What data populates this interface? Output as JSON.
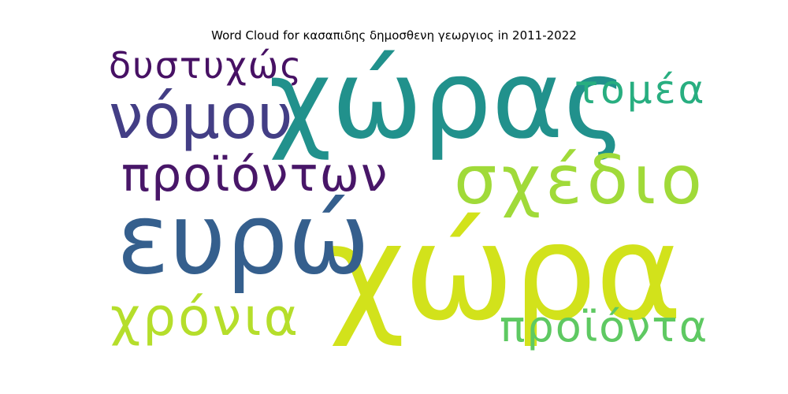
{
  "title": "Word Cloud for κασαπιδης δημοσθενη γεωργιος in 2011-2022",
  "words": [
    {
      "text": "χώρα",
      "color": "#d2e21b"
    },
    {
      "text": "χώρας",
      "color": "#21918c"
    },
    {
      "text": "ευρώ",
      "color": "#355f8d"
    },
    {
      "text": "σχέδιο",
      "color": "#a0da39"
    },
    {
      "text": "νόμου",
      "color": "#433e85"
    },
    {
      "text": "χρόνια",
      "color": "#b5de2b"
    },
    {
      "text": "προϊόντων",
      "color": "#481668"
    },
    {
      "text": "προϊόντα",
      "color": "#5ec962"
    },
    {
      "text": "δυστυχώς",
      "color": "#471164"
    },
    {
      "text": "τομέα",
      "color": "#28ae80"
    }
  ]
}
